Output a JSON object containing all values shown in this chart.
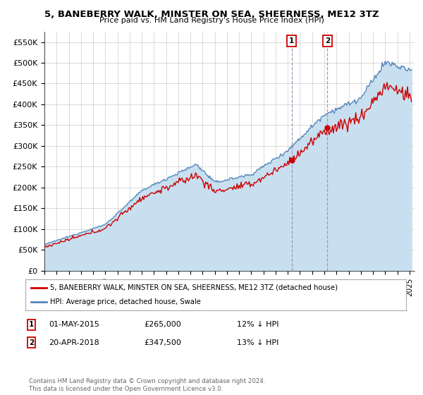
{
  "title": "5, BANEBERRY WALK, MINSTER ON SEA, SHEERNESS, ME12 3TZ",
  "subtitle": "Price paid vs. HM Land Registry's House Price Index (HPI)",
  "background_color": "#ffffff",
  "plot_bg_color": "#ffffff",
  "grid_color": "#cccccc",
  "transaction1_date": "01-MAY-2015",
  "transaction1_price": 265000,
  "transaction1_pct": "12% ↓ HPI",
  "transaction2_date": "20-APR-2018",
  "transaction2_price": 347500,
  "transaction2_pct": "13% ↓ HPI",
  "legend_line1": "5, BANEBERRY WALK, MINSTER ON SEA, SHEERNESS, ME12 3TZ (detached house)",
  "legend_line2": "HPI: Average price, detached house, Swale",
  "footnote": "Contains HM Land Registry data © Crown copyright and database right 2024.\nThis data is licensed under the Open Government Licence v3.0.",
  "line_red_color": "#cc0000",
  "line_blue_color": "#5588bb",
  "fill_blue_color": "#c8dff0",
  "vline_color": "#9999bb",
  "annotation_box_color": "#cc0000",
  "ylim_min": 0,
  "ylim_max": 575000,
  "yticks": [
    0,
    50000,
    100000,
    150000,
    200000,
    250000,
    300000,
    350000,
    400000,
    450000,
    500000,
    550000
  ],
  "ytick_labels": [
    "£0",
    "£50K",
    "£100K",
    "£150K",
    "£200K",
    "£250K",
    "£300K",
    "£350K",
    "£400K",
    "£450K",
    "£500K",
    "£550K"
  ]
}
